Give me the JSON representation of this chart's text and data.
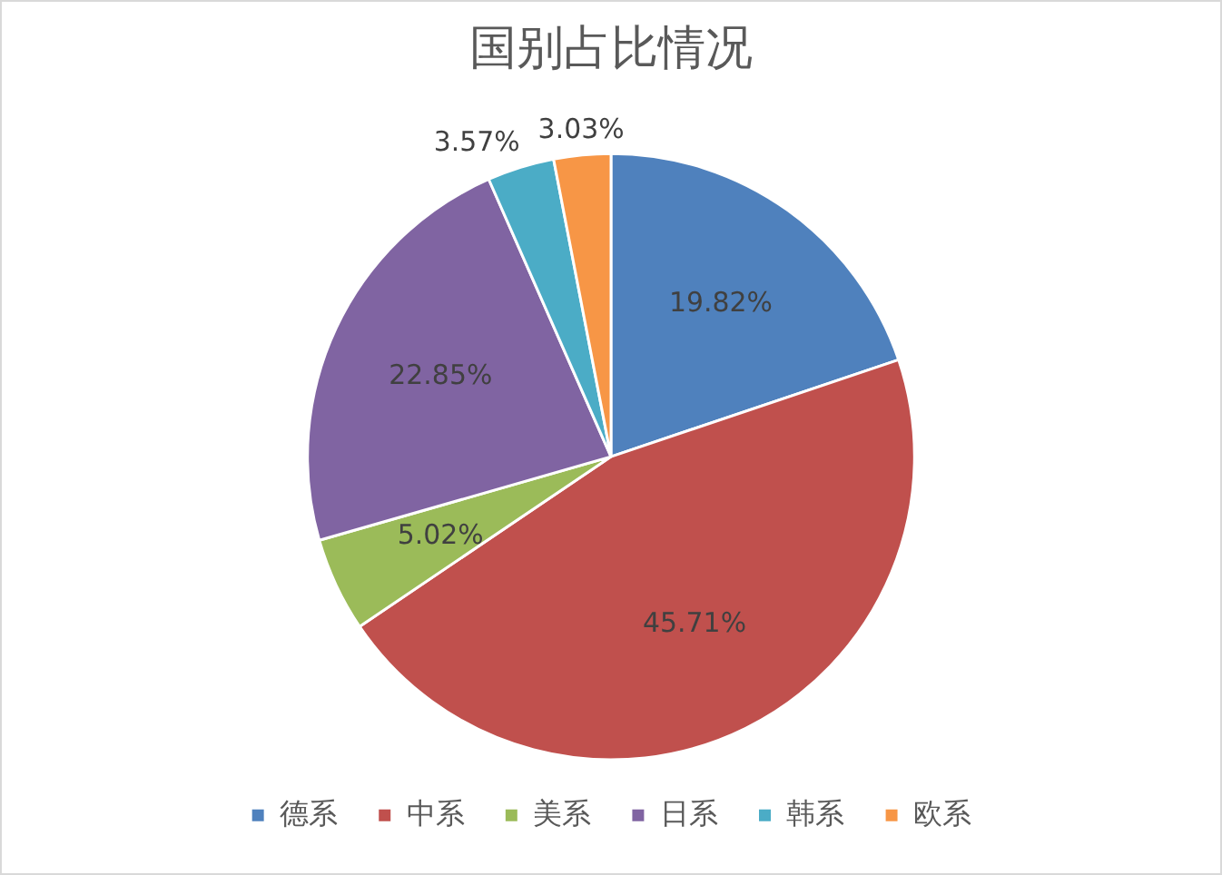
{
  "chart_data": {
    "type": "pie",
    "title": "国别占比情况",
    "categories": [
      "德系",
      "中系",
      "美系",
      "日系",
      "韩系",
      "欧系"
    ],
    "values": [
      19.82,
      45.71,
      5.02,
      22.85,
      3.57,
      3.03
    ],
    "colors": [
      "#4f81bd",
      "#c0504d",
      "#9bbb59",
      "#8064a2",
      "#4bacc6",
      "#f79646"
    ],
    "value_labels": [
      "19.82%",
      "45.71%",
      "5.02%",
      "22.85%",
      "3.57%",
      "3.03%"
    ],
    "legend": "bottom"
  }
}
